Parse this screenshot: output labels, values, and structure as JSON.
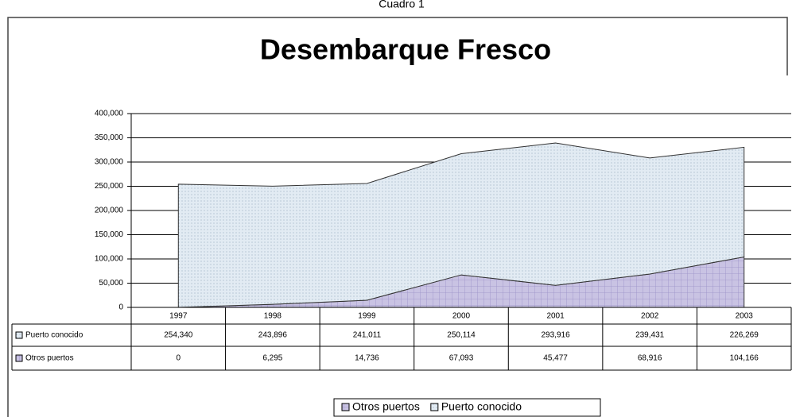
{
  "caption": "Cuadro 1",
  "chart_data": {
    "type": "stacked-area",
    "title": "Desembarque Fresco",
    "categories": [
      "1997",
      "1998",
      "1999",
      "2000",
      "2001",
      "2002",
      "2003"
    ],
    "series": [
      {
        "name": "Otros puertos",
        "color": "#c9c3e3",
        "values": [
          0,
          6295,
          14736,
          67093,
          45477,
          68916,
          104166
        ],
        "value_labels": [
          "0",
          "6,295",
          "14,736",
          "67,093",
          "45,477",
          "68,916",
          "104,166"
        ]
      },
      {
        "name": "Puerto conocido",
        "color": "#e2ebf3",
        "values": [
          254340,
          243896,
          241011,
          250114,
          293916,
          239431,
          226269
        ],
        "value_labels": [
          "254,340",
          "243,896",
          "241,011",
          "250,114",
          "293,916",
          "239,431",
          "226,269"
        ]
      }
    ],
    "ylim": [
      0,
      400000
    ],
    "yticks": [
      0,
      {
        "value": 50000,
        "label": "50,000"
      },
      {
        "value": 100000,
        "label": "100,000"
      },
      {
        "value": 150000,
        "label": "150,000"
      },
      {
        "value": 200000,
        "label": "200,000"
      },
      {
        "value": 250000,
        "label": "250,000"
      },
      {
        "value": 300000,
        "label": "300,000"
      },
      {
        "value": 350000,
        "label": "350,000"
      },
      {
        "value": 400000,
        "label": "400,000"
      }
    ],
    "grid": true,
    "legend": "bottom"
  }
}
